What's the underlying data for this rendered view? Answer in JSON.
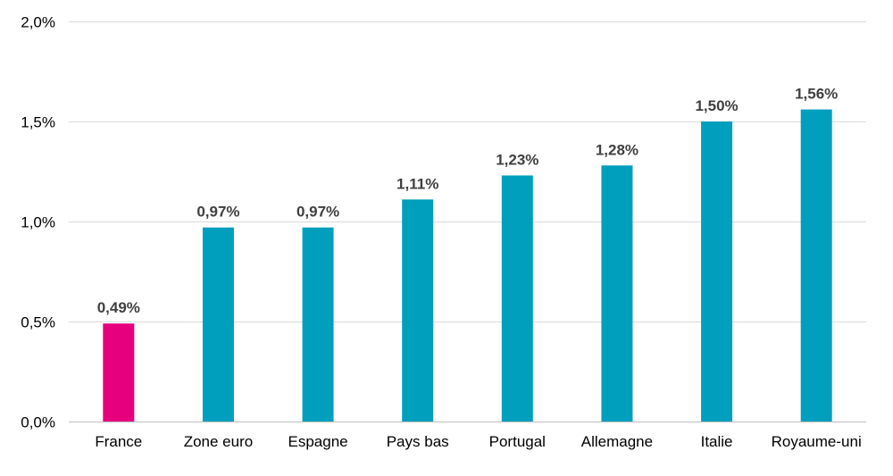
{
  "chart_data": {
    "type": "bar",
    "categories": [
      "France",
      "Zone euro",
      "Espagne",
      "Pays bas",
      "Portugal",
      "Allemagne",
      "Italie",
      "Royaume-uni"
    ],
    "values": [
      0.49,
      0.97,
      0.97,
      1.11,
      1.23,
      1.28,
      1.5,
      1.56
    ],
    "value_labels": [
      "0,49%",
      "0,97%",
      "0,97%",
      "1,11%",
      "1,23%",
      "1,28%",
      "1,50%",
      "1,56%"
    ],
    "bar_colors": [
      "#e6007e",
      "#009fbd",
      "#009fbd",
      "#009fbd",
      "#009fbd",
      "#009fbd",
      "#009fbd",
      "#009fbd"
    ],
    "ylim": [
      0,
      2.0
    ],
    "y_ticks": [
      0,
      0.5,
      1.0,
      1.5,
      2.0
    ],
    "y_tick_labels": [
      "0,0%",
      "0,5%",
      "1,0%",
      "1,5%",
      "2,0%"
    ],
    "grid": true,
    "legend": "none"
  }
}
